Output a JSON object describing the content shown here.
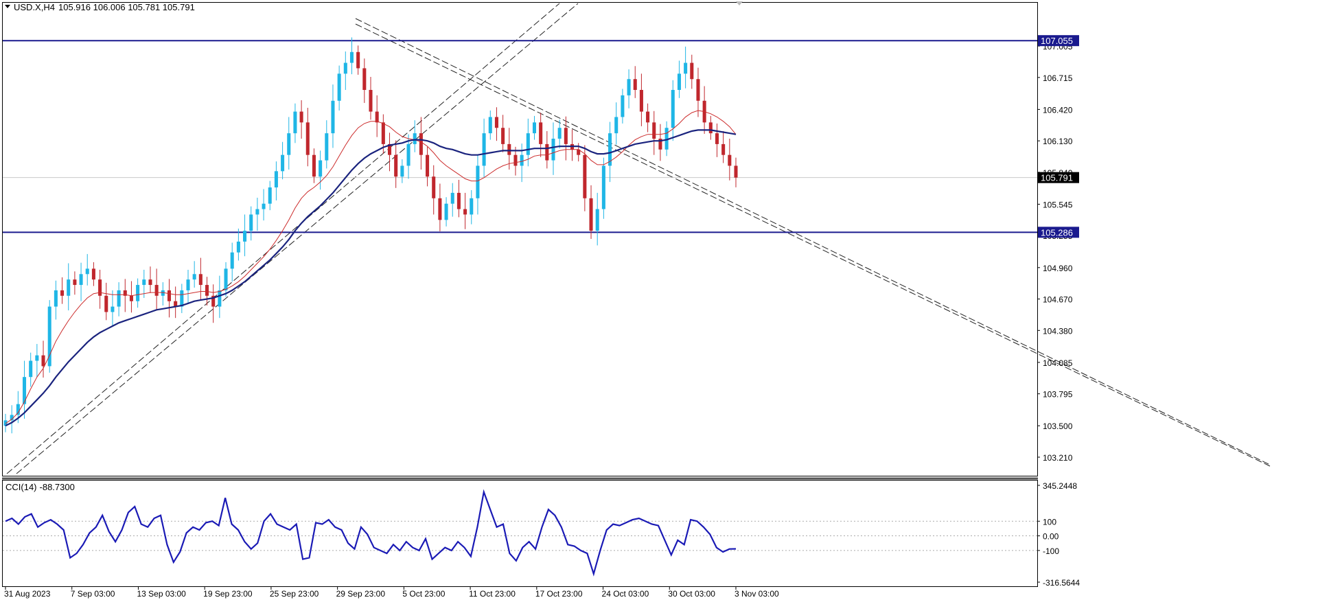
{
  "header": {
    "symbol": "USD.X,H4",
    "ohlc": "105.916 106.006 105.781 105.791"
  },
  "cci_header": {
    "label": "CCI(14)",
    "value": "-88.7300"
  },
  "colors": {
    "bull": "#1fb6e6",
    "bear": "#c0272d",
    "ma_fast": "#cc2b2b",
    "ma_slow": "#1a237e",
    "level": "#1a1a8e",
    "cci": "#1a1ab5",
    "tag_blue": "#1a1a8e"
  },
  "chart_data": [
    {
      "type": "line",
      "title": "",
      "price_axis_ticks": [
        "107.005",
        "106.715",
        "106.420",
        "106.130",
        "105.840",
        "105.545",
        "105.255",
        "104.960",
        "104.670",
        "104.380",
        "104.085",
        "103.795",
        "103.500",
        "103.210"
      ],
      "ylim": [
        103.14,
        107.24
      ],
      "time_axis_labels": [
        "31 Aug 2023",
        "7 Sep 03:00",
        "13 Sep 03:00",
        "19 Sep 23:00",
        "25 Sep 23:00",
        "29 Sep 23:00",
        "5 Oct 23:00",
        "11 Oct 23:00",
        "17 Oct 23:00",
        "24 Oct 03:00",
        "30 Oct 03:00",
        "3 Nov 03:00"
      ],
      "horizontal_levels": [
        {
          "value": 107.055,
          "label": "107.055"
        },
        {
          "value": 105.286,
          "label": "105.286"
        }
      ],
      "current_price": {
        "value": 105.791,
        "label": "105.791"
      },
      "close_series": [
        103.55,
        103.6,
        103.7,
        103.95,
        104.1,
        104.15,
        104.05,
        104.6,
        104.75,
        104.7,
        104.85,
        104.8,
        104.9,
        104.95,
        104.85,
        104.7,
        104.55,
        104.6,
        104.75,
        104.7,
        104.65,
        104.8,
        104.85,
        104.8,
        104.7,
        104.75,
        104.65,
        104.6,
        104.75,
        104.85,
        104.9,
        104.8,
        104.7,
        104.6,
        104.75,
        104.95,
        105.1,
        105.2,
        105.3,
        105.45,
        105.5,
        105.55,
        105.7,
        105.85,
        106.0,
        106.2,
        106.4,
        106.3,
        106.0,
        105.8,
        105.95,
        106.2,
        106.5,
        106.75,
        106.85,
        106.95,
        106.8,
        106.6,
        106.4,
        106.3,
        106.1,
        106.0,
        105.8,
        105.9,
        106.1,
        106.2,
        106.0,
        105.8,
        105.6,
        105.4,
        105.55,
        105.65,
        105.5,
        105.45,
        105.6,
        105.9,
        106.2,
        106.35,
        106.25,
        106.1,
        106.0,
        105.9,
        106.0,
        106.2,
        106.3,
        106.1,
        105.95,
        106.15,
        106.25,
        106.1,
        106.05,
        106.0,
        105.6,
        105.3,
        105.5,
        105.9,
        106.2,
        106.35,
        106.55,
        106.7,
        106.6,
        106.4,
        106.3,
        106.15,
        106.05,
        106.25,
        106.6,
        106.75,
        106.85,
        106.7,
        106.5,
        106.3,
        106.2,
        106.1,
        106.0,
        105.9,
        105.791
      ],
      "ma_fast_series": [
        103.52,
        103.56,
        103.62,
        103.72,
        103.84,
        103.95,
        104.03,
        104.15,
        104.28,
        104.38,
        104.47,
        104.55,
        104.62,
        104.68,
        104.72,
        104.73,
        104.72,
        104.71,
        104.71,
        104.71,
        104.7,
        104.71,
        104.72,
        104.73,
        104.73,
        104.73,
        104.72,
        104.71,
        104.71,
        104.72,
        104.73,
        104.74,
        104.74,
        104.73,
        104.74,
        104.76,
        104.79,
        104.83,
        104.88,
        104.94,
        105.0,
        105.06,
        105.13,
        105.21,
        105.3,
        105.4,
        105.51,
        105.6,
        105.66,
        105.7,
        105.75,
        105.81,
        105.89,
        105.99,
        106.09,
        106.18,
        106.25,
        106.29,
        106.31,
        106.31,
        106.29,
        106.26,
        106.21,
        106.17,
        106.15,
        106.14,
        106.12,
        106.08,
        106.02,
        105.95,
        105.9,
        105.86,
        105.82,
        105.78,
        105.76,
        105.76,
        105.79,
        105.83,
        105.87,
        105.9,
        105.92,
        105.93,
        105.94,
        105.96,
        105.99,
        106.0,
        106.0,
        106.02,
        106.04,
        106.05,
        106.05,
        106.05,
        106.01,
        105.95,
        105.91,
        105.91,
        105.94,
        105.98,
        106.03,
        106.09,
        106.14,
        106.17,
        106.19,
        106.19,
        106.19,
        106.2,
        106.24,
        106.29,
        106.35,
        106.39,
        106.41,
        106.4,
        106.38,
        106.35,
        106.31,
        106.26,
        106.19
      ],
      "ma_slow_series": [
        103.5,
        103.53,
        103.57,
        103.62,
        103.68,
        103.74,
        103.8,
        103.87,
        103.95,
        104.02,
        104.09,
        104.15,
        104.21,
        104.27,
        104.32,
        104.36,
        104.39,
        104.42,
        104.45,
        104.47,
        104.49,
        104.51,
        104.53,
        104.55,
        104.57,
        104.58,
        104.59,
        104.6,
        104.61,
        104.63,
        104.65,
        104.66,
        104.67,
        104.68,
        104.7,
        104.72,
        104.75,
        104.79,
        104.83,
        104.88,
        104.93,
        104.98,
        105.03,
        105.09,
        105.15,
        105.22,
        105.3,
        105.37,
        105.43,
        105.48,
        105.53,
        105.59,
        105.65,
        105.72,
        105.79,
        105.86,
        105.92,
        105.97,
        106.01,
        106.04,
        106.07,
        106.09,
        106.1,
        106.11,
        106.13,
        106.14,
        106.14,
        106.13,
        106.11,
        106.08,
        106.06,
        106.05,
        106.03,
        106.01,
        106.0,
        106.0,
        106.01,
        106.02,
        106.03,
        106.04,
        106.04,
        106.04,
        106.04,
        106.05,
        106.06,
        106.06,
        106.06,
        106.07,
        106.08,
        106.08,
        106.08,
        106.08,
        106.06,
        106.03,
        106.01,
        106.01,
        106.02,
        106.04,
        106.06,
        106.08,
        106.1,
        106.11,
        106.12,
        106.13,
        106.13,
        106.14,
        106.16,
        106.18,
        106.2,
        106.22,
        106.23,
        106.23,
        106.23,
        106.22,
        106.21,
        106.2,
        106.19
      ],
      "trendlines": "dashed double channel lines (ascending and descending)"
    },
    {
      "type": "line",
      "title": "",
      "indicator": "CCI(14)",
      "axis_ticks": [
        "345.2448",
        "100",
        "0.00",
        "-100",
        "-316.5644"
      ],
      "ylim": [
        -316.5644,
        345.2448
      ],
      "reference_levels": [
        100,
        0,
        -100
      ],
      "values": [
        100,
        120,
        80,
        130,
        150,
        60,
        90,
        110,
        80,
        40,
        -150,
        -120,
        -60,
        20,
        60,
        140,
        30,
        -40,
        40,
        160,
        200,
        80,
        60,
        120,
        140,
        -60,
        -180,
        -110,
        20,
        60,
        40,
        90,
        100,
        70,
        260,
        80,
        40,
        -40,
        -90,
        -50,
        100,
        150,
        80,
        60,
        40,
        80,
        -160,
        -150,
        90,
        80,
        110,
        60,
        40,
        -50,
        -90,
        60,
        10,
        -80,
        -100,
        -120,
        -60,
        -100,
        -40,
        -80,
        -100,
        -20,
        -160,
        -120,
        -80,
        -100,
        -40,
        -80,
        -140,
        60,
        300,
        180,
        60,
        80,
        -120,
        -170,
        -80,
        -40,
        -90,
        60,
        180,
        140,
        60,
        -60,
        -70,
        -100,
        -120,
        -260,
        -100,
        40,
        80,
        70,
        90,
        110,
        120,
        100,
        80,
        70,
        -30,
        -130,
        -30,
        -60,
        110,
        100,
        60,
        10,
        -80,
        -110,
        -90,
        -88.73
      ]
    }
  ]
}
